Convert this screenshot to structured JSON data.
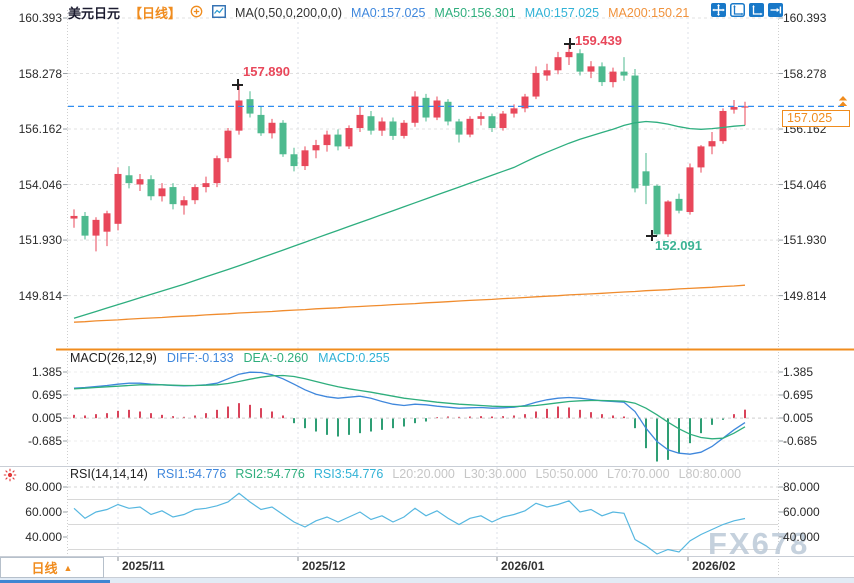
{
  "header": {
    "symbol": "美元日元",
    "period_tag": "【日线】",
    "ma_settings": "MA(0,50,0,200,0,0)",
    "ma0a": "MA0:157.025",
    "ma50": "MA50:156.301",
    "ma0b": "MA0:157.025",
    "ma200": "MA200:150.21"
  },
  "toolbar": {
    "icons": [
      "pan",
      "axis-scale",
      "axis-scale-active",
      "jump-to-latest"
    ]
  },
  "price_tag": "157.025",
  "indicators": {
    "macd": {
      "title": "MACD(26,12,9)",
      "diff": "DIFF:-0.133",
      "dea": "DEA:-0.260",
      "macd": "MACD:0.255"
    },
    "rsi": {
      "title": "RSI(14,14,14)",
      "rsi1": "RSI1:54.776",
      "rsi2": "RSI2:54.776",
      "rsi3": "RSI3:54.776",
      "l20": "L20:20.000",
      "l30": "L30:30.000",
      "l50": "L50:50.000",
      "l70": "L70:70.000",
      "l80": "L80:80.000"
    }
  },
  "bottom": {
    "period_button": "日线",
    "period_button_arrow": "▲",
    "watermark": "FX678"
  },
  "colors": {
    "up": "#e8475a",
    "down": "#4eba8f",
    "ma50": "#2eae7f",
    "ma200": "#f08c2e",
    "diff": "#3f87dc",
    "dea": "#2fae7d",
    "hist_up": "#d9435a",
    "hist_down": "#2e9e74",
    "rsi": "#56b7e0",
    "price_line": "#2f8df0",
    "accent": "#f08c1e",
    "grid": "#e3e3e3",
    "separator": "#c9ced6",
    "axis_text": "#2a2a2a",
    "icon_blue": "#1878c8"
  },
  "chart_data": [
    {
      "type": "candlestick",
      "title": "美元日元 日线",
      "y_ticks": [
        160.393,
        158.278,
        156.162,
        154.046,
        151.93,
        149.814
      ],
      "x_ticks": [
        {
          "x": 118,
          "label": "2025/11"
        },
        {
          "x": 298,
          "label": "2025/12"
        },
        {
          "x": 497,
          "label": "2026/01"
        },
        {
          "x": 688,
          "label": "2026/02"
        }
      ],
      "current_price": 157.025,
      "annotations": [
        {
          "index": 15,
          "type": "high",
          "text": "157.890"
        },
        {
          "index": 45,
          "type": "high",
          "text": "159.439"
        },
        {
          "index": 53,
          "type": "low",
          "text": "152.091"
        }
      ],
      "candles": [
        [
          152.75,
          153.1,
          152.4,
          152.85
        ],
        [
          152.85,
          153.0,
          151.95,
          152.1
        ],
        [
          152.1,
          152.8,
          151.5,
          152.7
        ],
        [
          152.25,
          153.05,
          151.7,
          152.95
        ],
        [
          152.55,
          154.7,
          152.3,
          154.45
        ],
        [
          154.4,
          154.75,
          153.9,
          154.1
        ],
        [
          154.05,
          154.45,
          153.8,
          154.25
        ],
        [
          154.25,
          154.4,
          153.45,
          153.6
        ],
        [
          153.6,
          154.1,
          153.4,
          153.9
        ],
        [
          153.95,
          154.1,
          153.1,
          153.3
        ],
        [
          153.25,
          153.6,
          152.9,
          153.45
        ],
        [
          153.45,
          154.05,
          153.3,
          153.95
        ],
        [
          153.95,
          154.35,
          153.75,
          154.1
        ],
        [
          154.1,
          155.15,
          153.95,
          155.05
        ],
        [
          155.05,
          156.2,
          154.9,
          156.1
        ],
        [
          156.1,
          157.89,
          155.95,
          157.25
        ],
        [
          157.3,
          157.6,
          156.6,
          156.75
        ],
        [
          156.7,
          157.0,
          155.9,
          156.0
        ],
        [
          156.0,
          156.55,
          155.8,
          156.4
        ],
        [
          156.4,
          156.5,
          155.1,
          155.2
        ],
        [
          155.2,
          155.45,
          154.55,
          154.75
        ],
        [
          154.75,
          155.5,
          154.6,
          155.35
        ],
        [
          155.35,
          155.75,
          155.05,
          155.55
        ],
        [
          155.55,
          156.1,
          155.3,
          155.95
        ],
        [
          155.95,
          156.15,
          155.35,
          155.5
        ],
        [
          155.5,
          156.3,
          155.4,
          156.2
        ],
        [
          156.2,
          157.0,
          156.05,
          156.7
        ],
        [
          156.65,
          156.85,
          155.95,
          156.1
        ],
        [
          156.1,
          156.6,
          155.9,
          156.45
        ],
        [
          156.45,
          156.6,
          155.75,
          155.9
        ],
        [
          155.9,
          156.5,
          155.8,
          156.4
        ],
        [
          156.4,
          157.6,
          156.25,
          157.4
        ],
        [
          157.35,
          157.5,
          156.45,
          156.6
        ],
        [
          156.6,
          157.4,
          156.5,
          157.25
        ],
        [
          157.2,
          157.3,
          156.3,
          156.45
        ],
        [
          156.45,
          156.55,
          155.65,
          155.95
        ],
        [
          155.95,
          156.65,
          155.85,
          156.55
        ],
        [
          156.55,
          156.8,
          156.3,
          156.65
        ],
        [
          156.65,
          156.75,
          156.05,
          156.2
        ],
        [
          156.2,
          156.85,
          156.1,
          156.75
        ],
        [
          156.75,
          157.1,
          156.6,
          156.95
        ],
        [
          156.95,
          157.5,
          156.8,
          157.4
        ],
        [
          157.4,
          158.55,
          157.3,
          158.3
        ],
        [
          158.2,
          158.65,
          158.0,
          158.4
        ],
        [
          158.4,
          159.1,
          158.25,
          158.9
        ],
        [
          158.9,
          159.439,
          158.6,
          159.1
        ],
        [
          159.05,
          159.2,
          158.2,
          158.35
        ],
        [
          158.35,
          158.75,
          158.1,
          158.55
        ],
        [
          158.55,
          158.7,
          157.8,
          157.95
        ],
        [
          157.95,
          158.5,
          157.75,
          158.35
        ],
        [
          158.35,
          158.9,
          158.0,
          158.2
        ],
        [
          158.2,
          158.45,
          153.75,
          153.9
        ],
        [
          154.55,
          155.25,
          153.3,
          154.0
        ],
        [
          154.0,
          154.05,
          152.091,
          152.15
        ],
        [
          152.15,
          153.45,
          152.05,
          153.4
        ],
        [
          153.5,
          153.7,
          152.95,
          153.05
        ],
        [
          153.0,
          154.85,
          152.9,
          154.7
        ],
        [
          154.7,
          155.55,
          154.5,
          155.5
        ],
        [
          155.5,
          156.05,
          155.2,
          155.7
        ],
        [
          155.7,
          156.95,
          155.6,
          156.85
        ],
        [
          156.9,
          157.27,
          156.75,
          157.0
        ],
        [
          157.0,
          157.2,
          156.3,
          157.025
        ]
      ],
      "ma50": [
        148.95,
        149.08,
        149.21,
        149.34,
        149.47,
        149.6,
        149.73,
        149.86,
        149.99,
        150.12,
        150.25,
        150.39,
        150.53,
        150.67,
        150.81,
        150.95,
        151.1,
        151.25,
        151.4,
        151.55,
        151.7,
        151.85,
        152.0,
        152.15,
        152.3,
        152.45,
        152.6,
        152.75,
        152.9,
        153.05,
        153.2,
        153.35,
        153.5,
        153.65,
        153.8,
        153.95,
        154.1,
        154.25,
        154.4,
        154.55,
        154.7,
        154.9,
        155.1,
        155.28,
        155.45,
        155.62,
        155.77,
        155.9,
        156.03,
        156.15,
        156.3,
        156.4,
        156.45,
        156.42,
        156.35,
        156.25,
        156.18,
        156.15,
        156.18,
        156.22,
        156.27,
        156.3
      ],
      "ma200": [
        148.8,
        148.82,
        148.85,
        148.87,
        148.89,
        148.92,
        148.94,
        148.96,
        148.98,
        149.01,
        149.03,
        149.05,
        149.08,
        149.1,
        149.12,
        149.15,
        149.17,
        149.19,
        149.21,
        149.24,
        149.26,
        149.28,
        149.31,
        149.33,
        149.35,
        149.38,
        149.4,
        149.42,
        149.44,
        149.47,
        149.49,
        149.51,
        149.54,
        149.56,
        149.58,
        149.61,
        149.63,
        149.65,
        149.67,
        149.7,
        149.72,
        149.74,
        149.77,
        149.79,
        149.81,
        149.84,
        149.86,
        149.88,
        149.9,
        149.93,
        149.95,
        149.97,
        150.0,
        150.02,
        150.04,
        150.07,
        150.09,
        150.11,
        150.13,
        150.16,
        150.18,
        150.21
      ]
    },
    {
      "type": "macd",
      "y_ticks": [
        1.385,
        0.695,
        0.005,
        -0.685
      ],
      "diff": [
        0.9,
        0.92,
        0.95,
        0.98,
        1.02,
        1.05,
        1.05,
        1.02,
        1.0,
        0.98,
        0.97,
        0.98,
        1.0,
        1.05,
        1.18,
        1.32,
        1.38,
        1.37,
        1.3,
        1.18,
        1.02,
        0.85,
        0.72,
        0.64,
        0.6,
        0.63,
        0.66,
        0.6,
        0.5,
        0.42,
        0.38,
        0.42,
        0.4,
        0.36,
        0.33,
        0.3,
        0.31,
        0.32,
        0.3,
        0.31,
        0.33,
        0.38,
        0.48,
        0.55,
        0.6,
        0.62,
        0.6,
        0.56,
        0.52,
        0.5,
        0.48,
        0.2,
        -0.3,
        -0.7,
        -0.95,
        -1.05,
        -1.08,
        -1.02,
        -0.85,
        -0.6,
        -0.35,
        -0.133
      ],
      "dea": [
        0.88,
        0.9,
        0.92,
        0.94,
        0.96,
        0.98,
        1.0,
        1.0,
        1.0,
        0.99,
        0.98,
        0.98,
        0.99,
        1.0,
        1.04,
        1.1,
        1.17,
        1.23,
        1.27,
        1.28,
        1.25,
        1.18,
        1.1,
        1.02,
        0.94,
        0.88,
        0.83,
        0.78,
        0.72,
        0.66,
        0.6,
        0.56,
        0.52,
        0.48,
        0.45,
        0.42,
        0.4,
        0.38,
        0.36,
        0.35,
        0.35,
        0.36,
        0.38,
        0.42,
        0.46,
        0.5,
        0.52,
        0.53,
        0.53,
        0.52,
        0.51,
        0.45,
        0.3,
        0.1,
        -0.12,
        -0.32,
        -0.48,
        -0.58,
        -0.62,
        -0.6,
        -0.45,
        -0.26
      ],
      "hist": [
        0.1,
        0.08,
        0.12,
        0.15,
        0.22,
        0.25,
        0.2,
        0.15,
        0.1,
        0.06,
        0.04,
        0.08,
        0.15,
        0.25,
        0.35,
        0.45,
        0.4,
        0.3,
        0.2,
        0.08,
        -0.15,
        -0.3,
        -0.4,
        -0.5,
        -0.55,
        -0.5,
        -0.45,
        -0.4,
        -0.35,
        -0.3,
        -0.25,
        -0.15,
        -0.1,
        0.03,
        0.05,
        0.04,
        0.05,
        0.06,
        0.05,
        0.06,
        0.08,
        0.12,
        0.2,
        0.28,
        0.35,
        0.32,
        0.25,
        0.18,
        0.12,
        0.08,
        0.05,
        -0.3,
        -0.9,
        -1.3,
        -1.25,
        -1.05,
        -0.75,
        -0.45,
        -0.2,
        -0.05,
        0.12,
        0.255
      ]
    },
    {
      "type": "rsi",
      "y_ticks": [
        80,
        60,
        40
      ],
      "levels_solid": [
        70,
        50,
        30
      ],
      "level_dashed": 80,
      "values": [
        63,
        55,
        60,
        62,
        66,
        63,
        64,
        58,
        61,
        56,
        58,
        62,
        63,
        65,
        68,
        75,
        68,
        62,
        64,
        58,
        52,
        48,
        53,
        56,
        52,
        56,
        60,
        54,
        57,
        52,
        56,
        63,
        57,
        61,
        55,
        50,
        55,
        57,
        52,
        56,
        58,
        61,
        67,
        64,
        66,
        69,
        60,
        62,
        57,
        60,
        59,
        38,
        33,
        24,
        30,
        28,
        37,
        42,
        46,
        50,
        53,
        54.776
      ]
    }
  ]
}
